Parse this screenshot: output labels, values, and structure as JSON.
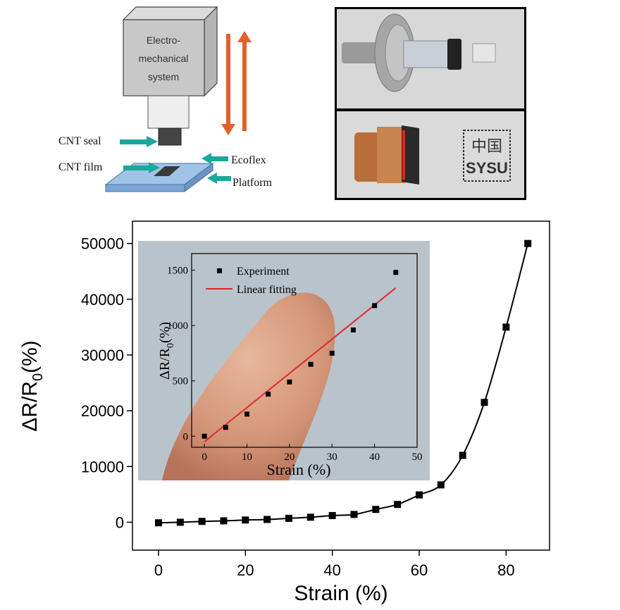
{
  "diagram": {
    "box_label_lines": [
      "Electro-",
      "mechanical",
      "system"
    ],
    "labels": {
      "cnt_seal": "CNT seal",
      "cnt_film": "CNT film",
      "ecoflex": "Ecoflex",
      "platform": "Platform"
    },
    "arrow_colors": {
      "motion": "#e0622a",
      "pointer": "#1ba79a"
    }
  },
  "photos": {
    "seal_text": "中国\nSYSU"
  },
  "chart_data": [
    {
      "type": "line",
      "xlabel": "Strain (%)",
      "ylabel": "ΔR/R0(%)",
      "xlim": [
        -6,
        90
      ],
      "ylim": [
        -5000,
        54000
      ],
      "xticks": [
        0,
        20,
        40,
        60,
        80
      ],
      "yticks": [
        0,
        10000,
        20000,
        30000,
        40000,
        50000
      ],
      "x": [
        0,
        5,
        10,
        15,
        20,
        25,
        30,
        35,
        40,
        45,
        50,
        55,
        60,
        65,
        70,
        75,
        80,
        85
      ],
      "y": [
        -100,
        0,
        150,
        250,
        400,
        500,
        700,
        900,
        1200,
        1400,
        2300,
        3200,
        4900,
        6700,
        12000,
        21500,
        35000,
        50000
      ],
      "grid": false,
      "marker": "square",
      "color": "#000000"
    },
    {
      "type": "scatter",
      "xlabel": "Strain (%)",
      "ylabel": "ΔR/R0(%)",
      "xlim": [
        -3,
        50
      ],
      "ylim": [
        -100,
        1650
      ],
      "xticks": [
        0,
        10,
        20,
        30,
        40,
        50
      ],
      "yticks": [
        0,
        500,
        1000,
        1500
      ],
      "series": [
        {
          "name": "Experiment",
          "x": [
            0,
            5,
            10,
            15,
            20,
            25,
            30,
            35,
            40,
            45
          ],
          "y": [
            0,
            80,
            200,
            380,
            490,
            650,
            750,
            960,
            1180,
            1480
          ],
          "marker": "square",
          "color": "#000000"
        },
        {
          "name": "Linear fitting",
          "x": [
            0,
            45
          ],
          "y": [
            -50,
            1340
          ],
          "color": "#e0282a"
        }
      ],
      "legend_position": "top-left",
      "background": "photo of fingertip"
    }
  ]
}
